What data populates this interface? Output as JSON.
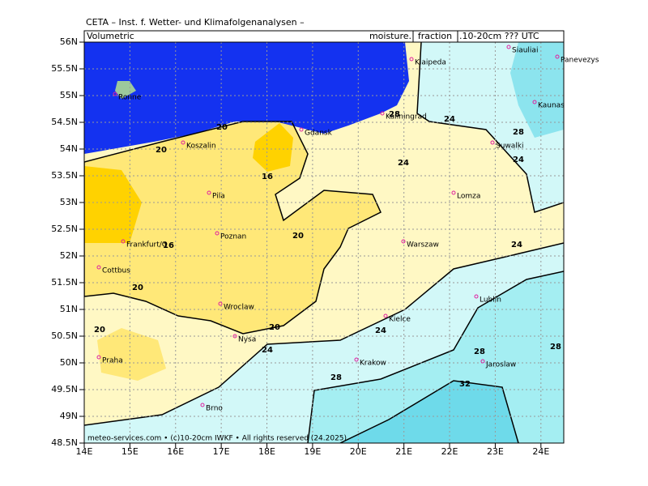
{
  "header": {
    "title": "CETA – Inst. f. Wetter- und Klimafolgenanalysen –",
    "left_label": "Volumetric",
    "right_label_prefix": "moisture.",
    "right_label_box": "fraction",
    "right_label_suffix": ".10-20cm ??? UTC"
  },
  "axes": {
    "lat_labels": [
      "56N",
      "55.5N",
      "55N",
      "54.5N",
      "54N",
      "53.5N",
      "53N",
      "52.5N",
      "52N",
      "51.5N",
      "51N",
      "50.5N",
      "50N",
      "49.5N",
      "49N",
      "48.5N"
    ],
    "lon_labels": [
      "14E",
      "15E",
      "16E",
      "17E",
      "18E",
      "19E",
      "20E",
      "21E",
      "22E",
      "23E",
      "24E"
    ]
  },
  "cities": [
    "Ronne",
    "Klaipeda",
    "Siauliai",
    "Panevezys",
    "Kaunas",
    "Kaliningrad",
    "Gdansk",
    "Koszalin",
    "Suwalki",
    "Pila",
    "Lomza",
    "Poznan",
    "Frankfurt/O",
    "Warszaw",
    "Cottbus",
    "Lublin",
    "Wroclaw",
    "Kielce",
    "Nysa",
    "Praha",
    "Krakow",
    "Jaroslaw",
    "Brno"
  ],
  "contour_labels": [
    20,
    20,
    16,
    20,
    16,
    20,
    20,
    20,
    24,
    24,
    24,
    24,
    24,
    24,
    28,
    28,
    28,
    28,
    28,
    32
  ],
  "footer": "meteo-services.com • (c)10-20cm IWKF • All rights reserved (24.2025)"
}
